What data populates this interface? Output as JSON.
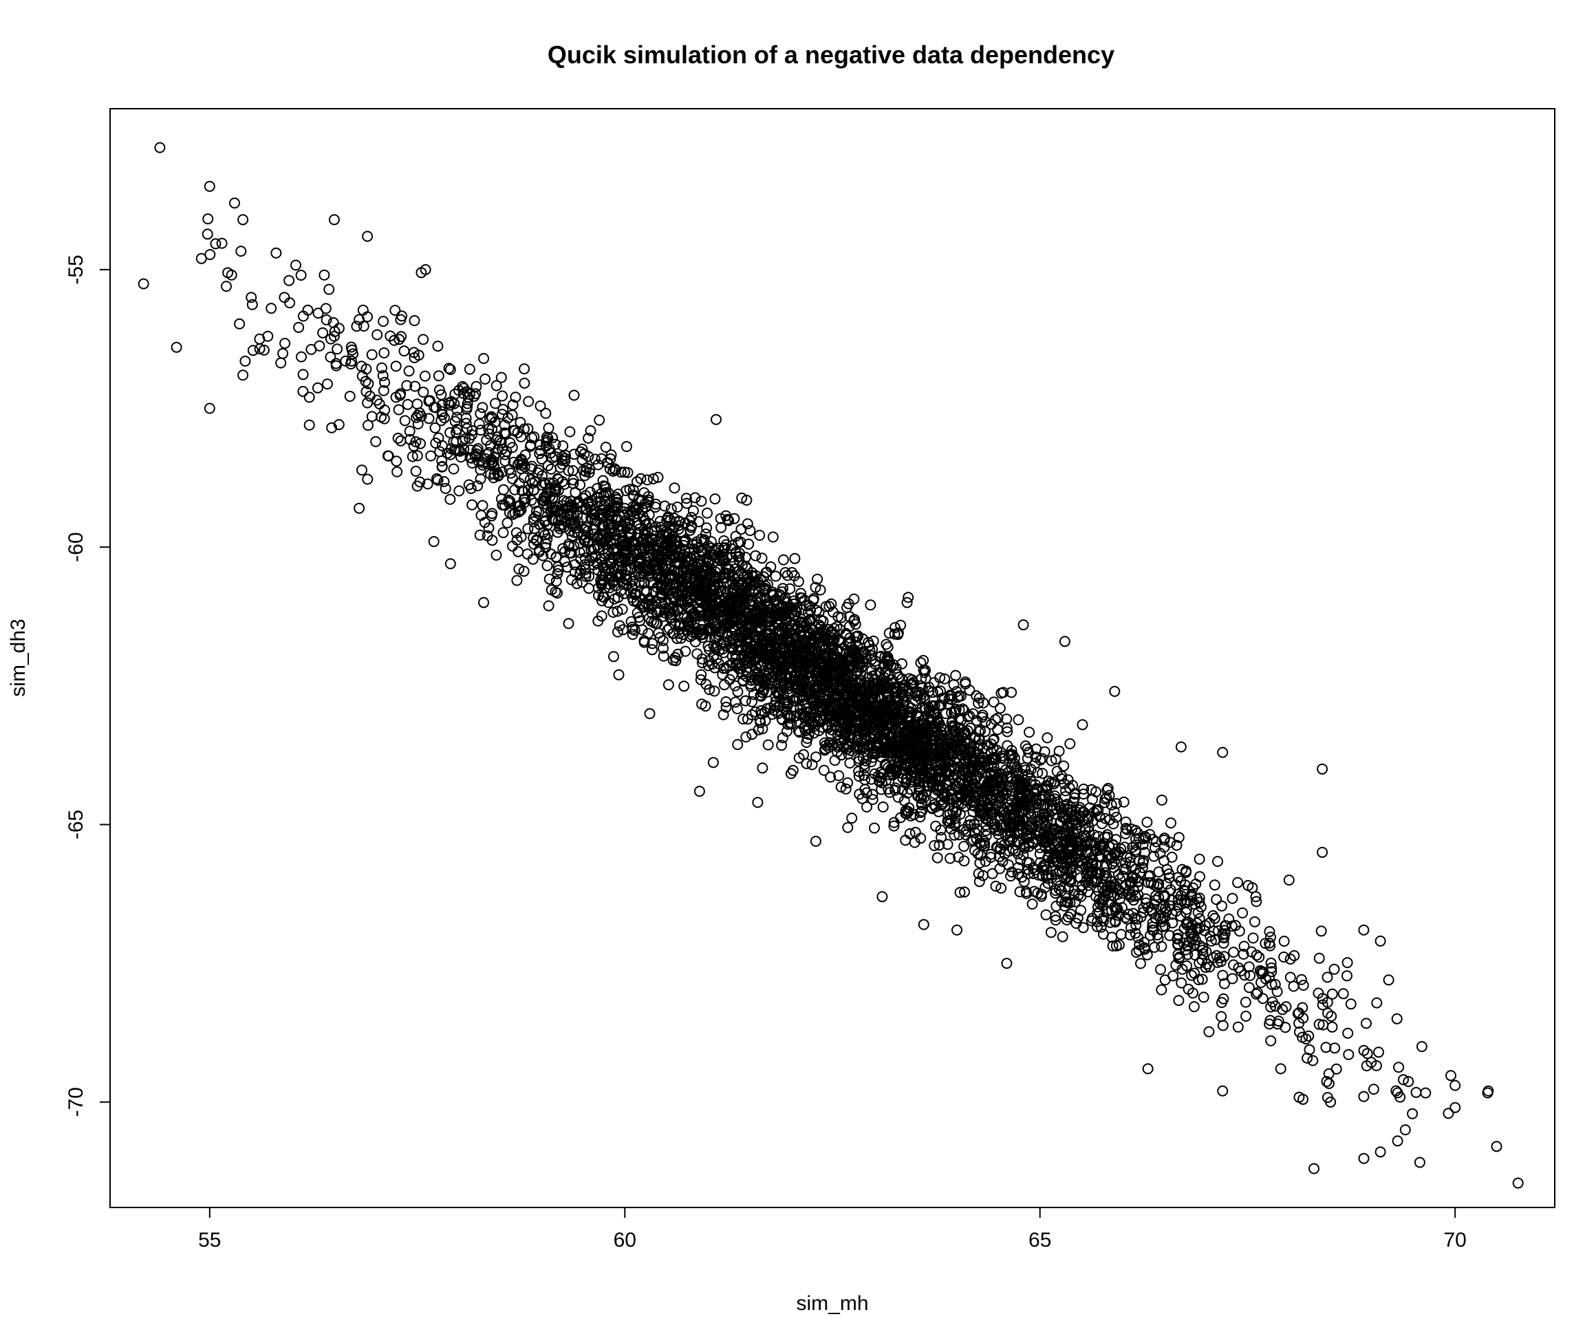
{
  "chart_data": {
    "type": "scatter",
    "title": "Qucik simulation of a negative data dependency",
    "xlabel": "sim_mh",
    "ylabel": "sim_dh3",
    "xlim": [
      53.8,
      71.2
    ],
    "ylim": [
      -71.9,
      -52.1
    ],
    "xticks": [
      55,
      60,
      65,
      70
    ],
    "yticks": [
      -55,
      -60,
      -65,
      -70
    ],
    "xtick_labels": [
      "55",
      "60",
      "65",
      "70"
    ],
    "ytick_labels": [
      "-55",
      "-60",
      "-65",
      "-70"
    ],
    "grid": false,
    "legend": "none",
    "marker": "open-circle",
    "color": "#000000",
    "n_points": 5000,
    "x_mean": 62.5,
    "x_sd": 2.5,
    "slope": -1.0,
    "intercept": 0.0,
    "residual_sd": 0.7,
    "points": [
      [
        54.4,
        -52.8
      ],
      [
        54.6,
        -56.4
      ],
      [
        55.0,
        -53.5
      ],
      [
        55.0,
        -57.5
      ],
      [
        54.9,
        -54.8
      ],
      [
        55.3,
        -53.8
      ],
      [
        55.4,
        -54.1
      ],
      [
        55.2,
        -55.3
      ],
      [
        55.4,
        -56.9
      ],
      [
        55.5,
        -55.5
      ],
      [
        55.8,
        -54.7
      ],
      [
        55.7,
        -56.2
      ],
      [
        55.9,
        -55.5
      ],
      [
        56.1,
        -55.1
      ],
      [
        56.2,
        -57.3
      ],
      [
        56.2,
        -57.8
      ],
      [
        56.4,
        -55.7
      ],
      [
        56.5,
        -54.1
      ],
      [
        56.5,
        -56.2
      ],
      [
        56.7,
        -56.7
      ],
      [
        56.8,
        -55.9
      ],
      [
        56.9,
        -54.4
      ],
      [
        56.9,
        -57.4
      ],
      [
        57.0,
        -58.1
      ],
      [
        56.8,
        -59.3
      ],
      [
        57.1,
        -56.5
      ],
      [
        57.3,
        -55.9
      ],
      [
        57.5,
        -58.9
      ],
      [
        57.6,
        -55.0
      ],
      [
        57.9,
        -56.8
      ],
      [
        57.7,
        -59.9
      ],
      [
        57.9,
        -60.3
      ],
      [
        58.3,
        -56.6
      ],
      [
        58.3,
        -61.0
      ],
      [
        58.7,
        -60.6
      ],
      [
        60.3,
        -63.0
      ],
      [
        60.9,
        -64.4
      ],
      [
        61.1,
        -57.7
      ],
      [
        61.6,
        -64.6
      ],
      [
        62.1,
        -63.8
      ],
      [
        62.3,
        -65.3
      ],
      [
        63.1,
        -66.3
      ],
      [
        63.4,
        -61.0
      ],
      [
        63.6,
        -66.8
      ],
      [
        64.0,
        -66.9
      ],
      [
        64.6,
        -67.5
      ],
      [
        64.8,
        -61.4
      ],
      [
        65.3,
        -61.7
      ],
      [
        65.9,
        -62.6
      ],
      [
        66.3,
        -69.4
      ],
      [
        66.7,
        -63.6
      ],
      [
        67.2,
        -63.7
      ],
      [
        67.2,
        -69.8
      ],
      [
        67.6,
        -66.3
      ],
      [
        67.9,
        -69.4
      ],
      [
        68.0,
        -66.0
      ],
      [
        68.3,
        -71.2
      ],
      [
        68.4,
        -64.0
      ],
      [
        68.4,
        -65.5
      ],
      [
        68.5,
        -70.0
      ],
      [
        68.9,
        -66.9
      ],
      [
        68.9,
        -69.9
      ],
      [
        69.1,
        -67.1
      ],
      [
        69.1,
        -70.9
      ],
      [
        69.2,
        -67.8
      ],
      [
        69.4,
        -70.5
      ],
      [
        69.6,
        -69.0
      ],
      [
        69.3,
        -68.5
      ],
      [
        70.0,
        -69.7
      ],
      [
        70.0,
        -70.1
      ],
      [
        70.4,
        -69.8
      ],
      [
        70.5,
        -70.8
      ]
    ]
  }
}
